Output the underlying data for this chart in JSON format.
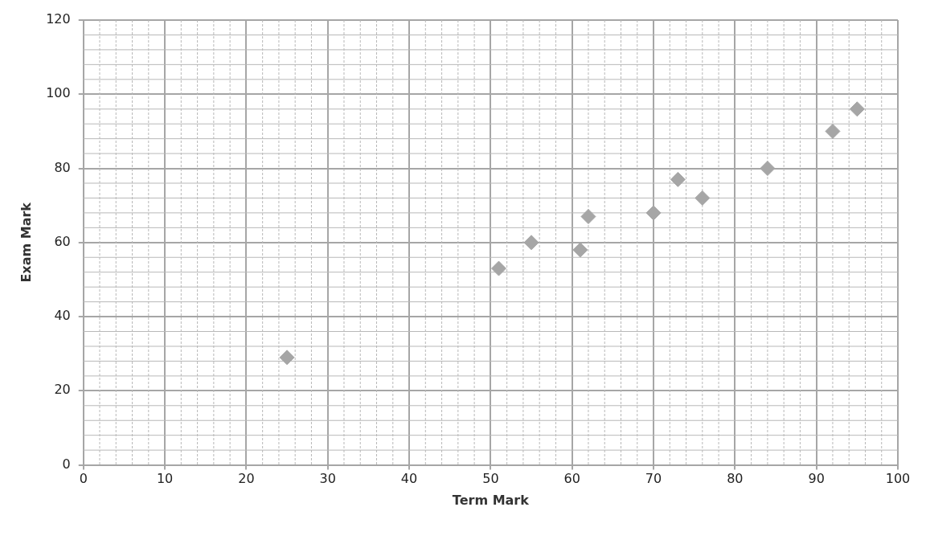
{
  "chart_data": {
    "type": "scatter",
    "xlabel": "Term Mark",
    "ylabel": "Exam Mark",
    "x": [
      25,
      51,
      55,
      61,
      62,
      70,
      73,
      76,
      84,
      92,
      95
    ],
    "values": [
      29,
      53,
      60,
      58,
      67,
      68,
      77,
      72,
      80,
      90,
      96
    ],
    "color": "#a6a6a6",
    "marker": "diamond",
    "xlim": [
      0,
      100
    ],
    "xticks": [
      0,
      10,
      20,
      30,
      40,
      50,
      60,
      70,
      80,
      90,
      100
    ],
    "ylim": [
      0,
      120
    ],
    "yticks": [
      0,
      20,
      40,
      60,
      80,
      100,
      120
    ],
    "grid": true,
    "legend": false
  }
}
